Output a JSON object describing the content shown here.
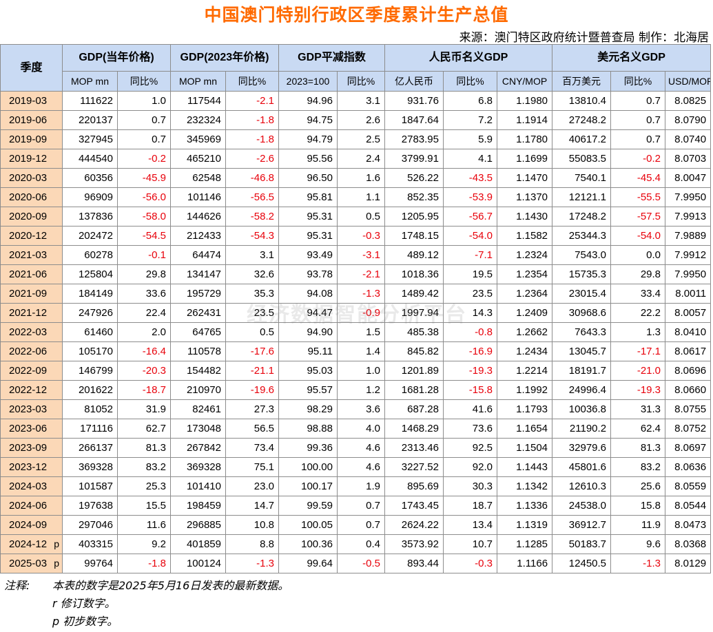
{
  "title": "中国澳门特别行政区季度累计生产总值",
  "source": "来源：澳门特区政府统计暨普查局  制作：北海居",
  "header": {
    "quarter": "季度",
    "groups": [
      "GDP(当年价格)",
      "GDP(2023年价格)",
      "GDP平减指数",
      "人民币名义GDP",
      "美元名义GDP"
    ],
    "units": [
      "MOP mn",
      "同比%",
      "MOP mn",
      "同比%",
      "2023=100",
      "同比%",
      "亿人民币",
      "同比%",
      "CNY/MOP",
      "百万美元",
      "同比%",
      "USD/MOP"
    ]
  },
  "rows": [
    {
      "q": "2019-03",
      "f": "",
      "v": [
        "111622",
        "1.0",
        "117544",
        "-2.1",
        "94.96",
        "3.1",
        "931.76",
        "6.8",
        "1.1980",
        "13810.4",
        "0.7",
        "8.0825"
      ]
    },
    {
      "q": "2019-06",
      "f": "",
      "v": [
        "220137",
        "0.7",
        "232324",
        "-1.8",
        "94.75",
        "2.6",
        "1847.64",
        "7.2",
        "1.1914",
        "27248.2",
        "0.7",
        "8.0790"
      ]
    },
    {
      "q": "2019-09",
      "f": "",
      "v": [
        "327945",
        "0.7",
        "345969",
        "-1.8",
        "94.79",
        "2.5",
        "2783.95",
        "5.9",
        "1.1780",
        "40617.2",
        "0.7",
        "8.0740"
      ]
    },
    {
      "q": "2019-12",
      "f": "",
      "v": [
        "444540",
        "-0.2",
        "465210",
        "-2.6",
        "95.56",
        "2.4",
        "3799.91",
        "4.1",
        "1.1699",
        "55083.5",
        "-0.2",
        "8.0703"
      ]
    },
    {
      "q": "2020-03",
      "f": "",
      "v": [
        "60356",
        "-45.9",
        "62548",
        "-46.8",
        "96.50",
        "1.6",
        "526.22",
        "-43.5",
        "1.1470",
        "7540.1",
        "-45.4",
        "8.0047"
      ]
    },
    {
      "q": "2020-06",
      "f": "",
      "v": [
        "96909",
        "-56.0",
        "101146",
        "-56.5",
        "95.81",
        "1.1",
        "852.35",
        "-53.9",
        "1.1370",
        "12121.1",
        "-55.5",
        "7.9950"
      ]
    },
    {
      "q": "2020-09",
      "f": "",
      "v": [
        "137836",
        "-58.0",
        "144626",
        "-58.2",
        "95.31",
        "0.5",
        "1205.95",
        "-56.7",
        "1.1430",
        "17248.2",
        "-57.5",
        "7.9913"
      ]
    },
    {
      "q": "2020-12",
      "f": "",
      "v": [
        "202472",
        "-54.5",
        "212433",
        "-54.3",
        "95.31",
        "-0.3",
        "1748.15",
        "-54.0",
        "1.1582",
        "25344.3",
        "-54.0",
        "7.9889"
      ]
    },
    {
      "q": "2021-03",
      "f": "",
      "v": [
        "60278",
        "-0.1",
        "64474",
        "3.1",
        "93.49",
        "-3.1",
        "489.12",
        "-7.1",
        "1.2324",
        "7543.0",
        "0.0",
        "7.9912"
      ]
    },
    {
      "q": "2021-06",
      "f": "",
      "v": [
        "125804",
        "29.8",
        "134147",
        "32.6",
        "93.78",
        "-2.1",
        "1018.36",
        "19.5",
        "1.2354",
        "15735.3",
        "29.8",
        "7.9950"
      ]
    },
    {
      "q": "2021-09",
      "f": "",
      "v": [
        "184149",
        "33.6",
        "195729",
        "35.3",
        "94.08",
        "-1.3",
        "1489.42",
        "23.5",
        "1.2364",
        "23015.4",
        "33.4",
        "8.0011"
      ]
    },
    {
      "q": "2021-12",
      "f": "",
      "v": [
        "247926",
        "22.4",
        "262431",
        "23.5",
        "94.47",
        "-0.9",
        "1997.94",
        "14.3",
        "1.2409",
        "30968.6",
        "22.2",
        "8.0057"
      ]
    },
    {
      "q": "2022-03",
      "f": "",
      "v": [
        "61460",
        "2.0",
        "64765",
        "0.5",
        "94.90",
        "1.5",
        "485.38",
        "-0.8",
        "1.2662",
        "7643.3",
        "1.3",
        "8.0410"
      ]
    },
    {
      "q": "2022-06",
      "f": "",
      "v": [
        "105170",
        "-16.4",
        "110578",
        "-17.6",
        "95.11",
        "1.4",
        "845.82",
        "-16.9",
        "1.2434",
        "13045.7",
        "-17.1",
        "8.0617"
      ]
    },
    {
      "q": "2022-09",
      "f": "",
      "v": [
        "146799",
        "-20.3",
        "154482",
        "-21.1",
        "95.03",
        "1.0",
        "1201.89",
        "-19.3",
        "1.2214",
        "18191.7",
        "-21.0",
        "8.0696"
      ]
    },
    {
      "q": "2022-12",
      "f": "",
      "v": [
        "201622",
        "-18.7",
        "210970",
        "-19.6",
        "95.57",
        "1.2",
        "1681.28",
        "-15.8",
        "1.1992",
        "24996.4",
        "-19.3",
        "8.0660"
      ]
    },
    {
      "q": "2023-03",
      "f": "",
      "v": [
        "81052",
        "31.9",
        "82461",
        "27.3",
        "98.29",
        "3.6",
        "687.28",
        "41.6",
        "1.1793",
        "10036.8",
        "31.3",
        "8.0755"
      ]
    },
    {
      "q": "2023-06",
      "f": "",
      "v": [
        "171116",
        "62.7",
        "173048",
        "56.5",
        "98.88",
        "4.0",
        "1468.29",
        "73.6",
        "1.1654",
        "21190.2",
        "62.4",
        "8.0752"
      ]
    },
    {
      "q": "2023-09",
      "f": "",
      "v": [
        "266137",
        "81.3",
        "267842",
        "73.4",
        "99.36",
        "4.6",
        "2313.46",
        "92.5",
        "1.1504",
        "32979.6",
        "81.3",
        "8.0697"
      ]
    },
    {
      "q": "2023-12",
      "f": "",
      "v": [
        "369328",
        "83.2",
        "369328",
        "75.1",
        "100.00",
        "4.6",
        "3227.52",
        "92.0",
        "1.1443",
        "45801.6",
        "83.2",
        "8.0636"
      ]
    },
    {
      "q": "2024-03",
      "f": "",
      "v": [
        "101587",
        "25.3",
        "101410",
        "23.0",
        "100.17",
        "1.9",
        "895.69",
        "30.3",
        "1.1342",
        "12610.3",
        "25.6",
        "8.0559"
      ]
    },
    {
      "q": "2024-06",
      "f": "",
      "v": [
        "197638",
        "15.5",
        "198459",
        "14.7",
        "99.59",
        "0.7",
        "1743.45",
        "18.7",
        "1.1336",
        "24538.0",
        "15.8",
        "8.0544"
      ]
    },
    {
      "q": "2024-09",
      "f": "",
      "v": [
        "297046",
        "11.6",
        "296885",
        "10.8",
        "100.05",
        "0.7",
        "2624.22",
        "13.4",
        "1.1319",
        "36912.7",
        "11.9",
        "8.0473"
      ]
    },
    {
      "q": "2024-12",
      "f": "p",
      "v": [
        "403315",
        "9.2",
        "401859",
        "8.8",
        "100.36",
        "0.4",
        "3573.92",
        "10.7",
        "1.1285",
        "50183.7",
        "9.6",
        "8.0368"
      ]
    },
    {
      "q": "2025-03",
      "f": "p",
      "v": [
        "99764",
        "-1.8",
        "100124",
        "-1.3",
        "99.64",
        "-0.5",
        "893.44",
        "-0.3",
        "1.1166",
        "12450.5",
        "-1.3",
        "8.0129"
      ]
    }
  ],
  "notes": {
    "label": "注释:",
    "line1": "本表的数字是2025年5月16日发表的最新数据。",
    "line2": "r  修订数字。",
    "line3": "p  初步数字。"
  },
  "watermark": "经济数据智能分析平台",
  "colors": {
    "title": "#ff6a00",
    "header_bg": "#c9daf3",
    "quarter_bg": "#fbd8b7",
    "negative": "#e8000a"
  }
}
